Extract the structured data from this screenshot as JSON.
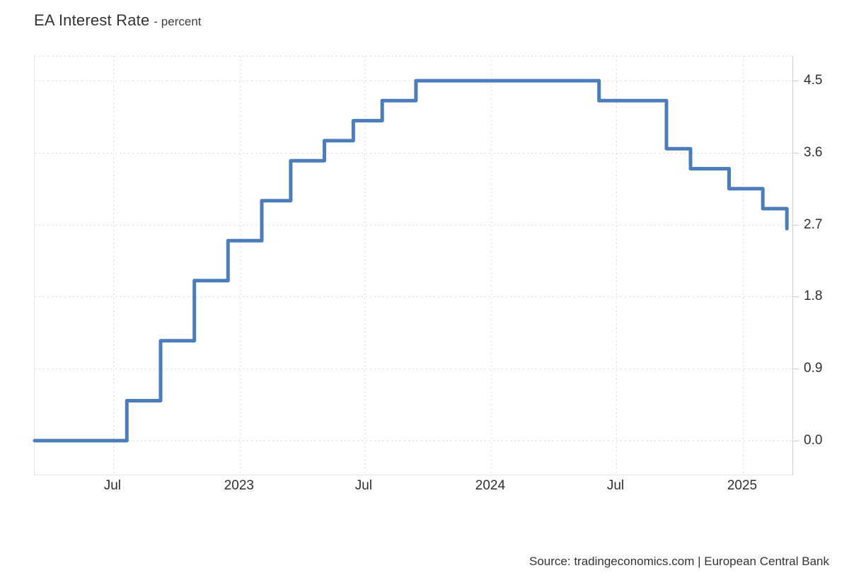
{
  "title": {
    "main": "EA Interest Rate",
    "subtitle": "- percent"
  },
  "source_line": "Source: tradingeconomics.com | European Central Bank",
  "colors": {
    "line": "#4b7dba",
    "grid": "#dddddd",
    "axis_border": "#e6e6e6",
    "tick": "#cccccc",
    "text": "#2f2f2f"
  },
  "chart_data": {
    "type": "line",
    "step": "left",
    "title": "EA Interest Rate",
    "ylabel": "percent",
    "grid": "dotted",
    "legend": "none",
    "y_axis_side": "right",
    "x_range": [
      "2022-03-09",
      "2025-03-14"
    ],
    "y_range": [
      -0.424,
      4.81
    ],
    "y_ticks": [
      {
        "value": 0.0,
        "label": "0.0"
      },
      {
        "value": 0.9,
        "label": "0.9"
      },
      {
        "value": 1.8,
        "label": "1.8"
      },
      {
        "value": 2.7,
        "label": "2.7"
      },
      {
        "value": 3.6,
        "label": "3.6"
      },
      {
        "value": 4.5,
        "label": "4.5"
      }
    ],
    "x_ticks": [
      {
        "date": "2022-07-01",
        "label": "Jul"
      },
      {
        "date": "2023-01-01",
        "label": "2023"
      },
      {
        "date": "2023-07-01",
        "label": "Jul"
      },
      {
        "date": "2024-01-01",
        "label": "2024"
      },
      {
        "date": "2024-07-01",
        "label": "Jul"
      },
      {
        "date": "2025-01-01",
        "label": "2025"
      }
    ],
    "series": [
      {
        "name": "EA Interest Rate",
        "color": "#4b7dba",
        "points": [
          {
            "date": "2022-03-09",
            "value": 0.0
          },
          {
            "date": "2022-07-21",
            "value": 0.5
          },
          {
            "date": "2022-09-08",
            "value": 1.25
          },
          {
            "date": "2022-10-27",
            "value": 2.0
          },
          {
            "date": "2022-12-15",
            "value": 2.5
          },
          {
            "date": "2023-02-02",
            "value": 3.0
          },
          {
            "date": "2023-03-16",
            "value": 3.5
          },
          {
            "date": "2023-05-04",
            "value": 3.75
          },
          {
            "date": "2023-06-15",
            "value": 4.0
          },
          {
            "date": "2023-07-27",
            "value": 4.25
          },
          {
            "date": "2023-09-14",
            "value": 4.5
          },
          {
            "date": "2024-06-06",
            "value": 4.25
          },
          {
            "date": "2024-09-12",
            "value": 3.65
          },
          {
            "date": "2024-10-17",
            "value": 3.4
          },
          {
            "date": "2024-12-12",
            "value": 3.15
          },
          {
            "date": "2025-01-30",
            "value": 2.9
          },
          {
            "date": "2025-03-06",
            "value": 2.65
          }
        ]
      }
    ]
  }
}
